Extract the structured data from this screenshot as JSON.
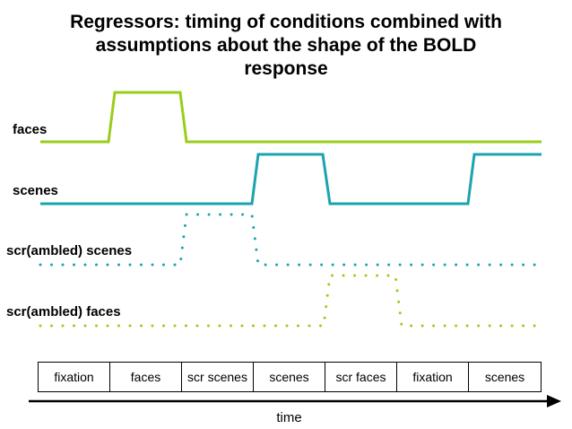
{
  "title": {
    "line1": "Regressors:  timing of conditions combined with",
    "line2": "assumptions about the shape of the BOLD",
    "line3": "response"
  },
  "regressors": [
    {
      "label": "faces",
      "style": "solid",
      "color": "#9ACD1A"
    },
    {
      "label": "scenes",
      "style": "solid",
      "color": "#1BA3AF"
    },
    {
      "label": "scr(ambled) scenes",
      "style": "dotted",
      "color": "#1BA3AF"
    },
    {
      "label": "scr(ambled) faces",
      "style": "dotted",
      "color": "#9ACD1A"
    }
  ],
  "conditions": [
    "fixation",
    "faces",
    "scr scenes",
    "scenes",
    "scr faces",
    "fixation",
    "scenes"
  ],
  "time_label": "time",
  "colors": {
    "green": "#9ACD1A",
    "teal": "#1BA3AF",
    "axis": "#000000"
  }
}
